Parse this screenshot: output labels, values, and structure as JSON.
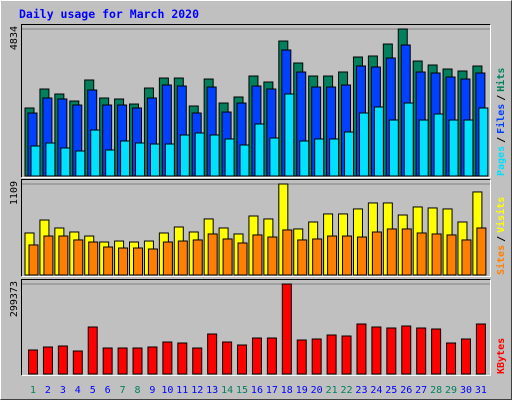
{
  "title": "Daily usage for March 2020",
  "legend_separator": "/",
  "chart_data": [
    {
      "type": "bar",
      "ylim": [
        0,
        4834
      ],
      "yticks": [
        4834
      ],
      "grid": true,
      "series": [
        {
          "name": "Pages",
          "color": "#00e0ff",
          "values": [
            986,
            1085,
            921,
            822,
            1512,
            855,
            1151,
            1085,
            1052,
            1052,
            1348,
            1414,
            1348,
            1217,
            1019,
            1710,
            1249,
            2696,
            1151,
            1217,
            1217,
            1447,
            2071,
            2269,
            1841,
            2400,
            1841,
            2039,
            1841,
            1841,
            2236
          ]
        },
        {
          "name": "Files",
          "color": "#0040ff",
          "values": [
            2071,
            2565,
            2532,
            2334,
            2828,
            2334,
            2334,
            2236,
            2565,
            2992,
            2959,
            2071,
            2926,
            2104,
            2400,
            2959,
            2861,
            4143,
            3420,
            2926,
            2926,
            2992,
            3617,
            3584,
            3880,
            4307,
            3420,
            3387,
            3255,
            3189,
            3387
          ]
        },
        {
          "name": "Hits",
          "color": "#00805c",
          "values": [
            2236,
            2861,
            2696,
            2466,
            3157,
            2565,
            2532,
            2367,
            2893,
            3222,
            3222,
            2302,
            3189,
            2400,
            2598,
            3288,
            3091,
            4439,
            3716,
            3288,
            3288,
            3420,
            3913,
            3946,
            4340,
            4834,
            3781,
            3650,
            3518,
            3453,
            3617
          ]
        }
      ]
    },
    {
      "type": "bar",
      "ylim": [
        0,
        1109
      ],
      "yticks": [
        1109
      ],
      "grid": true,
      "series": [
        {
          "name": "Sites",
          "color": "#ff8000",
          "values": [
            366,
            475,
            475,
            427,
            402,
            341,
            329,
            329,
            317,
            402,
            414,
            427,
            500,
            439,
            390,
            488,
            463,
            549,
            427,
            439,
            475,
            475,
            463,
            524,
            561,
            561,
            512,
            500,
            488,
            427,
            573
          ]
        },
        {
          "name": "Visits",
          "color": "#ffff00",
          "values": [
            512,
            670,
            573,
            524,
            475,
            402,
            414,
            402,
            414,
            512,
            585,
            524,
            683,
            573,
            500,
            719,
            683,
            1109,
            561,
            646,
            744,
            744,
            805,
            878,
            878,
            731,
            829,
            817,
            805,
            646,
            1012
          ]
        }
      ]
    },
    {
      "type": "bar",
      "ylim": [
        0,
        299373
      ],
      "yticks": [
        299373
      ],
      "grid": true,
      "categories": [
        "1",
        "2",
        "3",
        "4",
        "5",
        "6",
        "7",
        "8",
        "9",
        "10",
        "11",
        "12",
        "13",
        "14",
        "15",
        "16",
        "17",
        "18",
        "19",
        "20",
        "21",
        "22",
        "23",
        "24",
        "25",
        "26",
        "27",
        "28",
        "29",
        "30",
        "31"
      ],
      "category_colors": [
        "#00805c",
        "#0000ff",
        "#0000ff",
        "#0000ff",
        "#0000ff",
        "#0000ff",
        "#00805c",
        "#00805c",
        "#0000ff",
        "#0000ff",
        "#0000ff",
        "#0000ff",
        "#0000ff",
        "#00805c",
        "#00805c",
        "#0000ff",
        "#0000ff",
        "#0000ff",
        "#0000ff",
        "#0000ff",
        "#00805c",
        "#00805c",
        "#0000ff",
        "#0000ff",
        "#0000ff",
        "#0000ff",
        "#0000ff",
        "#00805c",
        "#00805c",
        "#0000ff",
        "#0000ff"
      ],
      "series": [
        {
          "name": "KBytes",
          "color": "#ff0000",
          "values": [
            79834,
            89813,
            93139,
            76507,
            156341,
            86486,
            86486,
            86486,
            89813,
            106445,
            103118,
            86486,
            133056,
            106445,
            96466,
            119750,
            119750,
            299373,
            113098,
            116424,
            129730,
            126403,
            166320,
            156341,
            153014,
            159667,
            153014,
            149688,
            103118,
            116424,
            166320
          ]
        }
      ]
    }
  ]
}
